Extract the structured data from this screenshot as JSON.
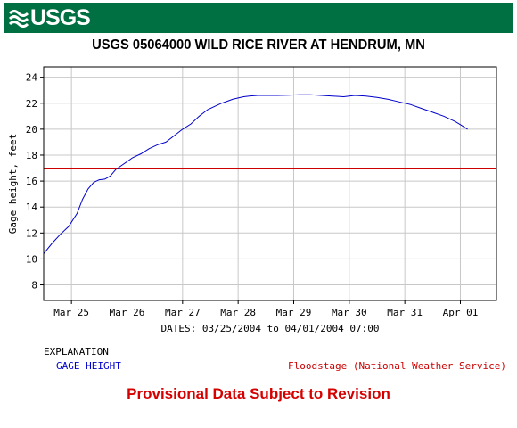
{
  "banner": {
    "logo_text": "USGS",
    "logo_icon": "usgs-wave-icon"
  },
  "chart_data": {
    "type": "line",
    "title": "USGS 05064000 WILD RICE RIVER AT HENDRUM, MN",
    "ylabel": "Gage height, feet",
    "xlabel": "DATES: 03/25/2004 to 04/01/2004 07:00",
    "x_tick_labels": [
      "Mar 25",
      "Mar 26",
      "Mar 27",
      "Mar 28",
      "Mar 29",
      "Mar 30",
      "Mar 31",
      "Apr 01"
    ],
    "y_ticks": [
      8,
      10,
      12,
      14,
      16,
      18,
      20,
      22,
      24
    ],
    "xlim": [
      -0.5,
      7.65
    ],
    "ylim": [
      6.8,
      24.8
    ],
    "grid": true,
    "series": [
      {
        "name": "GAGE HEIGHT",
        "color": "#0000cc",
        "x": [
          -0.5,
          -0.35,
          -0.2,
          -0.05,
          0.1,
          0.2,
          0.3,
          0.4,
          0.5,
          0.6,
          0.7,
          0.8,
          0.9,
          1.0,
          1.1,
          1.25,
          1.4,
          1.55,
          1.7,
          1.85,
          2.0,
          2.15,
          2.3,
          2.45,
          2.6,
          2.7,
          2.8,
          2.9,
          3.0,
          3.1,
          3.2,
          3.35,
          3.5,
          3.7,
          3.9,
          4.1,
          4.3,
          4.5,
          4.7,
          4.9,
          5.1,
          5.3,
          5.5,
          5.7,
          5.9,
          6.1,
          6.3,
          6.5,
          6.7,
          6.9,
          7.0,
          7.13
        ],
        "values": [
          10.4,
          11.2,
          11.9,
          12.5,
          13.5,
          14.6,
          15.4,
          15.9,
          16.1,
          16.15,
          16.4,
          16.9,
          17.2,
          17.5,
          17.8,
          18.1,
          18.5,
          18.8,
          19.0,
          19.5,
          20.0,
          20.4,
          21.0,
          21.5,
          21.8,
          22.0,
          22.15,
          22.3,
          22.4,
          22.5,
          22.55,
          22.6,
          22.6,
          22.6,
          22.62,
          22.65,
          22.65,
          22.6,
          22.55,
          22.5,
          22.6,
          22.55,
          22.45,
          22.3,
          22.1,
          21.9,
          21.6,
          21.3,
          21.0,
          20.6,
          20.35,
          20.0
        ]
      }
    ],
    "reference_lines": [
      {
        "name": "Floodstage (National Weather Service)",
        "y": 17.0,
        "color": "#cc0000"
      }
    ]
  },
  "legend": {
    "heading": "EXPLANATION",
    "gage_label": "GAGE HEIGHT",
    "gage_color": "#0000cc",
    "flood_label": "Floodstage (National Weather Service)",
    "flood_color": "#cc0000"
  },
  "footer": {
    "text": "Provisional Data Subject to Revision"
  }
}
